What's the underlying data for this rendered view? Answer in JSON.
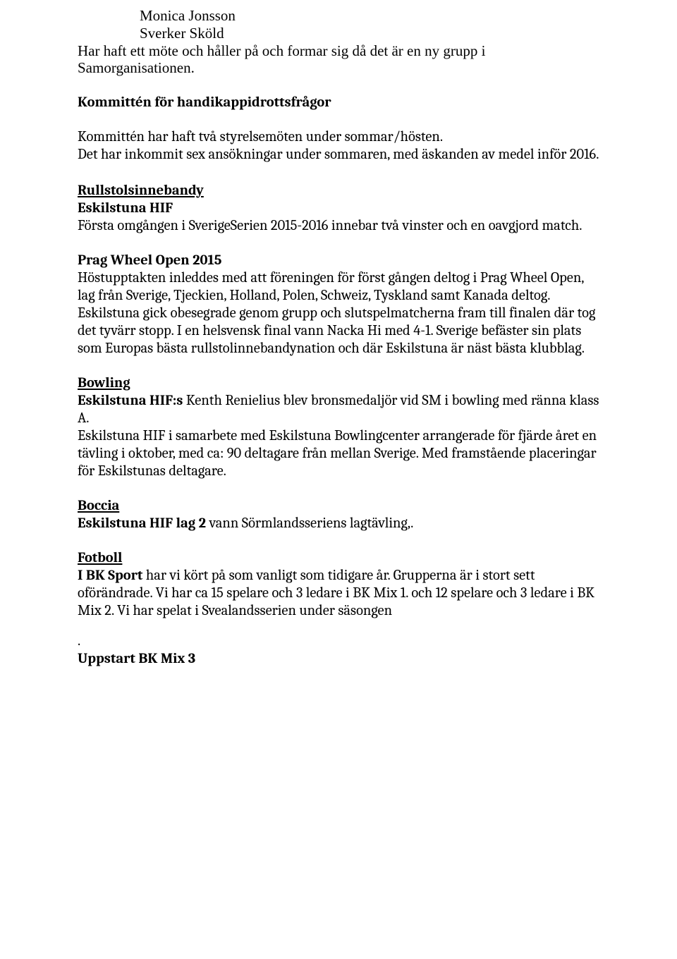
{
  "colors": {
    "text": "#000000",
    "background": "#ffffff"
  },
  "typography": {
    "serif_family": "Times New Roman",
    "text_family": "Cambria",
    "base_size_pt": 15,
    "line_height": 1.22
  },
  "top_names": {
    "name1": "Monica Jonsson",
    "name2": "Sverker Sköld"
  },
  "intro_lines": "Har haft ett möte och håller på och formar sig då det är en ny grupp i Samorganisationen.",
  "kommitten": {
    "title": "Kommittén för handikappidrottsfrågor",
    "body": "Kommittén har haft två styrelsemöten under sommar/hösten.\nDet har inkommit sex ansökningar under sommaren, med äskanden av medel inför 2016."
  },
  "rullstol": {
    "heading": "Rullstolsinnebandy",
    "club": "Eskilstuna HIF",
    "body": "Första omgången i SverigeSerien 2015-2016 innebar två vinster och en oavgjord match."
  },
  "prag": {
    "heading": "Prag Wheel Open 2015",
    "body": "Höstupptakten inleddes med att föreningen för först gången deltog i Prag Wheel Open, lag från Sverige, Tjeckien, Holland, Polen, Schweiz, Tyskland samt Kanada deltog. Eskilstuna gick obesegrade genom grupp och slutspelmatcherna fram till finalen där tog det tyvärr stopp. I en helsvensk final vann Nacka Hi med 4-1. Sverige befäster sin plats som Europas bästa rullstolinnebandynation och där Eskilstuna är näst bästa klubblag."
  },
  "bowling": {
    "heading": "Bowling",
    "lead": "Eskilstuna HIF:s ",
    "body1_rest": "Kenth Renielius blev bronsmedaljör vid SM i bowling med ränna klass A.",
    "body2": "Eskilstuna HIF i samarbete med Eskilstuna Bowlingcenter arrangerade för fjärde året en tävling i oktober, med ca: 90 deltagare från mellan Sverige. Med framstående placeringar för Eskilstunas deltagare."
  },
  "boccia": {
    "heading": "Boccia",
    "lead": "Eskilstuna HIF lag 2 ",
    "body_rest": "vann Sörmlandsseriens lagtävling,."
  },
  "fotboll": {
    "heading": "Fotboll",
    "lead": "I BK Sport ",
    "body_rest": "har vi kört på som vanligt som tidigare år. Grupperna är i stort sett oförändrade. Vi har ca 15 spelare och 3 ledare i BK Mix 1. och 12 spelare och 3 ledare i BK Mix 2. Vi har spelat i Svealandsserien under säsongen"
  },
  "dot": ".",
  "uppstart": "Uppstart BK Mix 3"
}
